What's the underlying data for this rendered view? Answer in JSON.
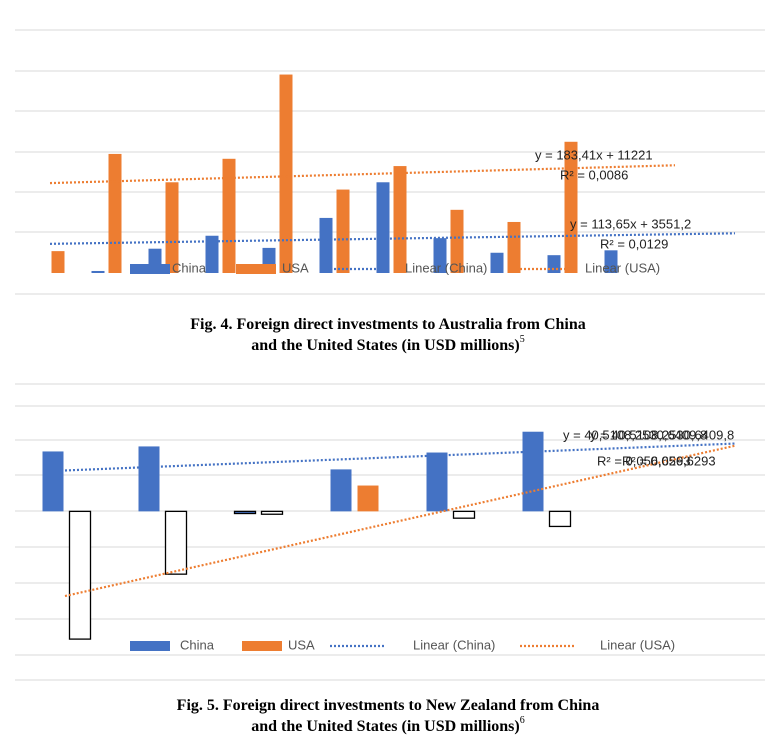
{
  "chart_data": [
    {
      "type": "bar",
      "categories": [
        null,
        null,
        null,
        null,
        null,
        null,
        null,
        null,
        null,
        null,
        null
      ],
      "series": [
        {
          "name": "China",
          "color": "#4472c4",
          "values": [
            0,
            250,
            3000,
            4600,
            3100,
            6800,
            11200,
            4300,
            2500,
            2200,
            2800
          ]
        },
        {
          "name": "USA",
          "color": "#ed7d31",
          "values": [
            2700,
            14700,
            11200,
            14100,
            24500,
            10300,
            13200,
            7800,
            6300,
            16200,
            0
          ]
        }
      ],
      "trendlines": [
        {
          "name": "Linear (China)",
          "color": "#4472c4",
          "start": 3600,
          "end": 4900,
          "equation": "y = 113,65x + 3551,2",
          "r2": "R² = 0,0129"
        },
        {
          "name": "Linear (USA)",
          "color": "#ed7d31",
          "start": 11100,
          "end": 13300,
          "equation": "y = 183,41x + 11221",
          "r2": "R² = 0,0086"
        }
      ],
      "ylim": [
        0,
        30000
      ],
      "caption": [
        "Fig. 4. Foreign direct investments to Australia from China",
        "and the United States (in USD millions)"
      ],
      "footnote": "5"
    },
    {
      "type": "bar",
      "categories": [
        null,
        null,
        null,
        null,
        null,
        null
      ],
      "series": [
        {
          "name": "China",
          "color": "#4472c4",
          "values": [
            167,
            181,
            -6,
            117,
            164,
            222
          ]
        },
        {
          "name": "USA",
          "color": "#ed7d31",
          "negative_color": "#ffffff",
          "values": [
            -356,
            -175,
            -8,
            72,
            -19,
            -42
          ]
        }
      ],
      "trendlines": [
        {
          "name": "Linear (China)",
          "color": "#4472c4",
          "start": 114,
          "end": 189,
          "equation": "y = 40,5108,2530,6409,8",
          "r2": "R² = 0,056,6293"
        },
        {
          "name": "Linear (USA)",
          "color": "#ed7d31",
          "start": -236,
          "end": 183,
          "equation": "y = 40,5108,2530,6409,8",
          "r2": "R² = 0,056,6293"
        }
      ],
      "ylim": [
        -470,
        355
      ],
      "caption": [
        "Fig. 5. Foreign direct investments to New Zealand from China",
        "and the United States (in USD millions)"
      ],
      "footnote": "6"
    }
  ]
}
